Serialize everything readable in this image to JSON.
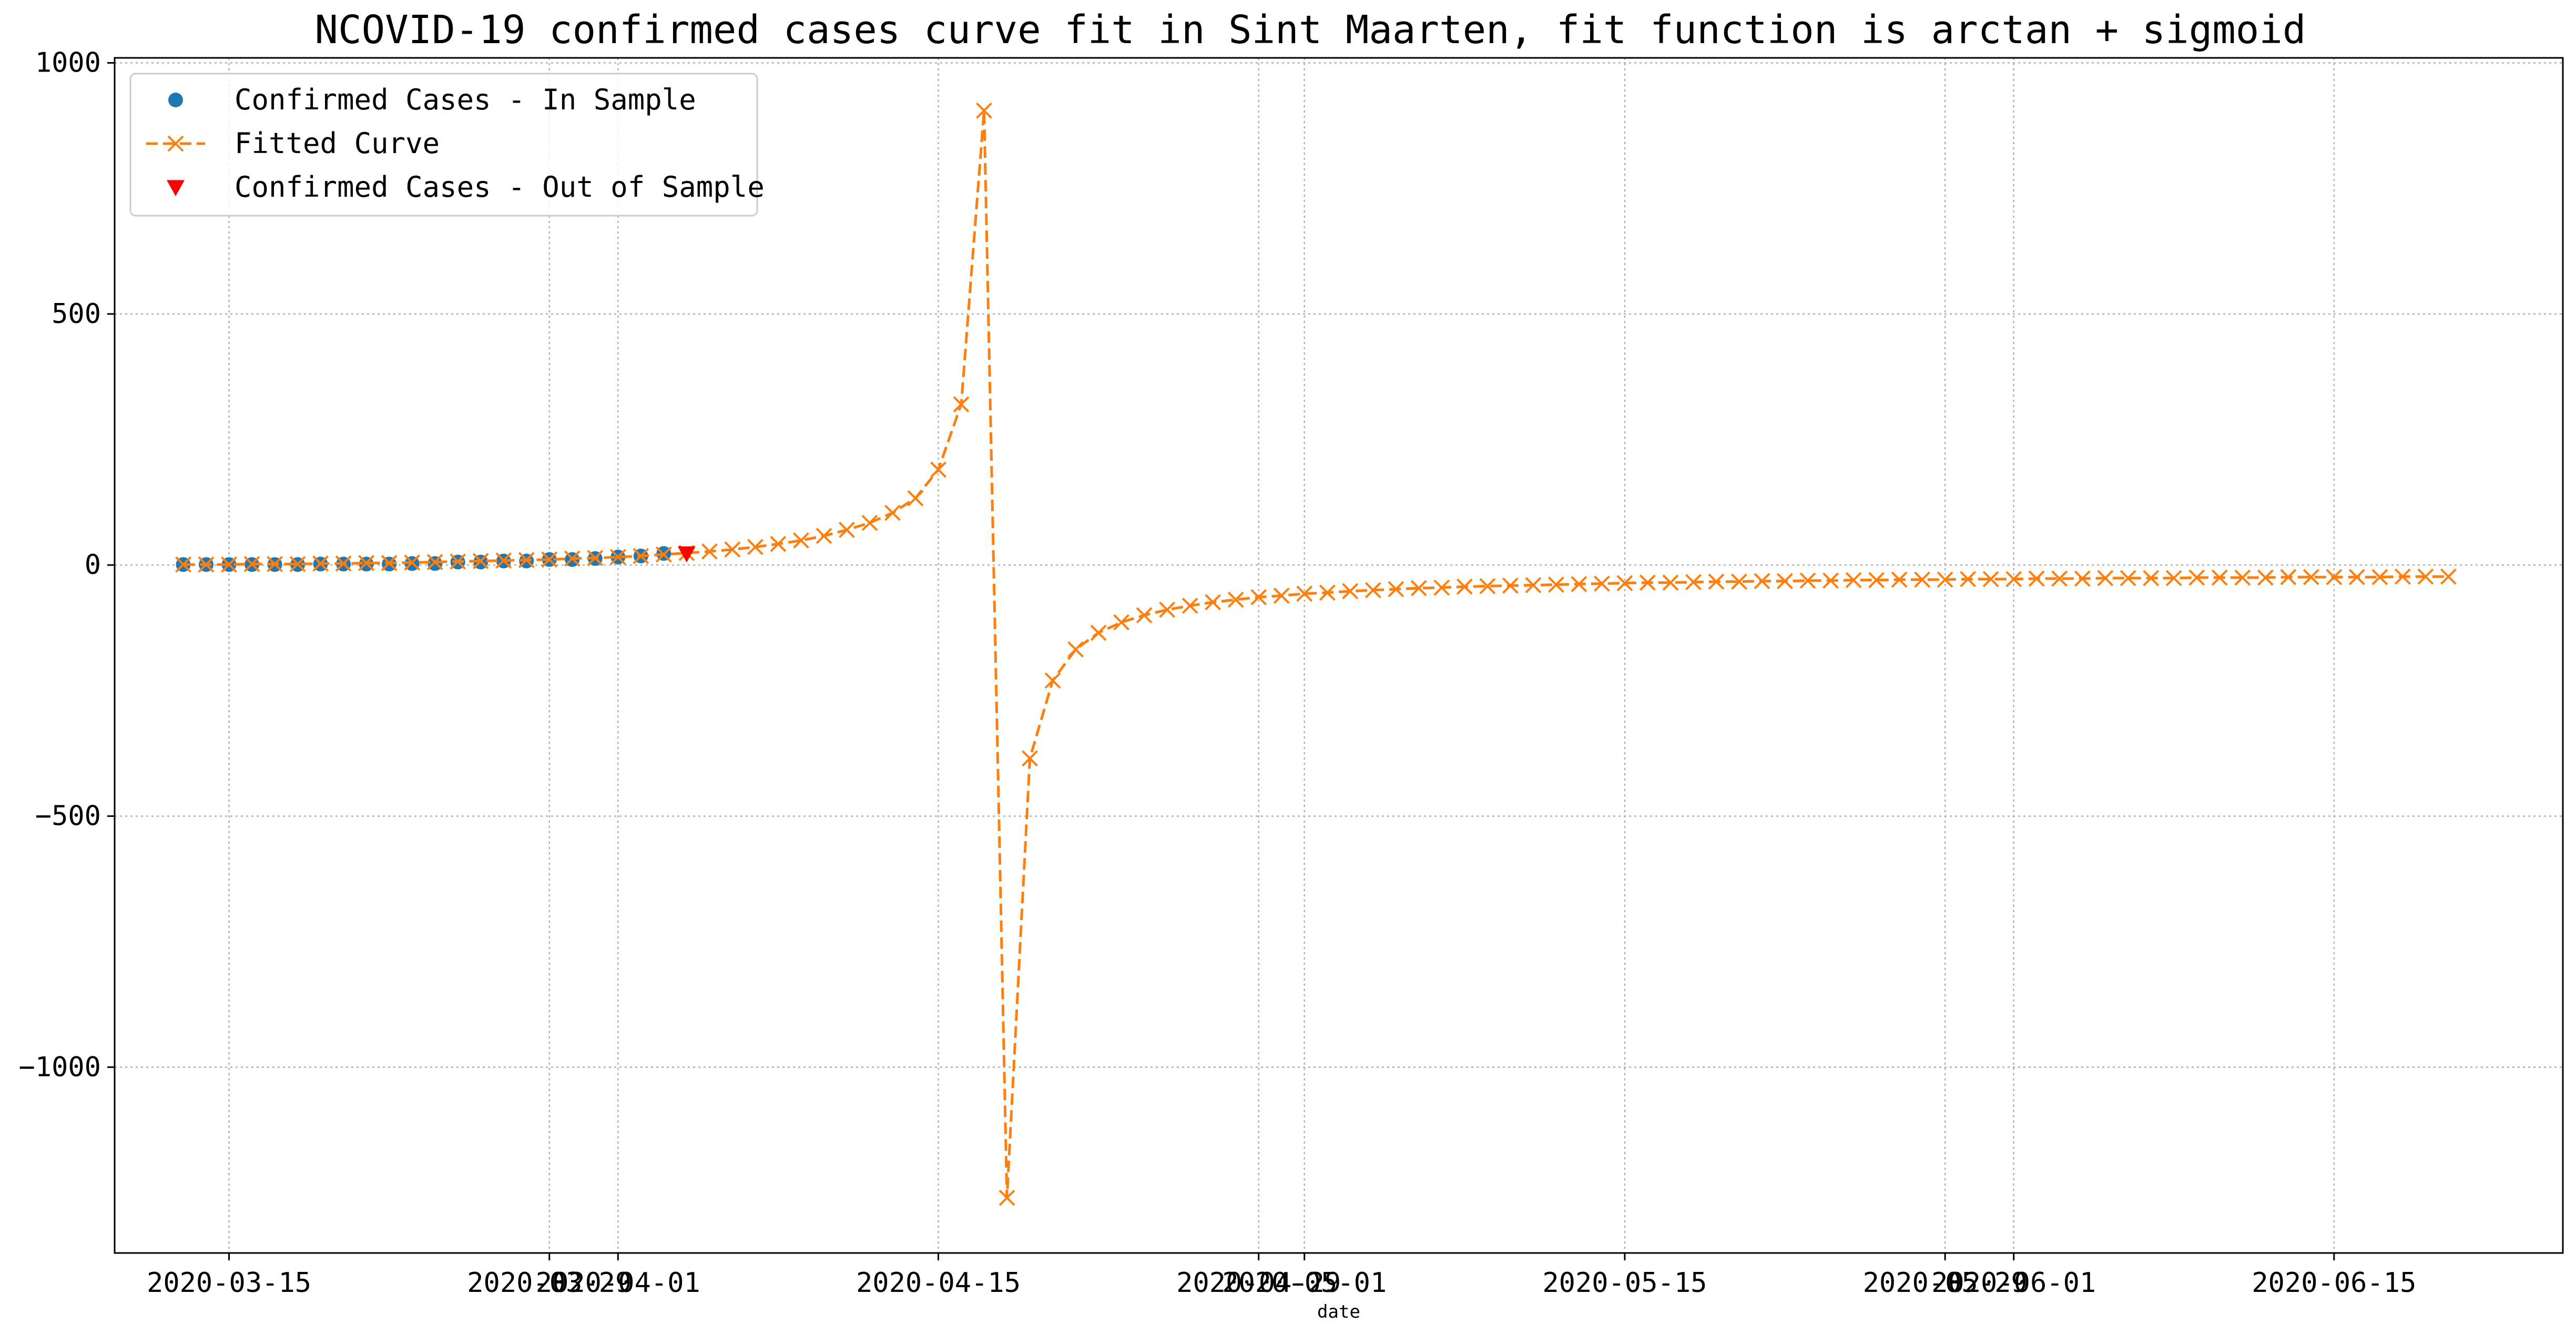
{
  "chart_data": {
    "type": "line",
    "title": "NCOVID-19 confirmed cases curve fit in Sint Maarten, fit function is arctan + sigmoid",
    "xlabel": "date",
    "ylabel": "",
    "x_start_date": "2020-03-13",
    "xlim": [
      "2020-03-10",
      "2020-06-25"
    ],
    "ylim": [
      -1370,
      1010
    ],
    "x_ticks": [
      {
        "date": "2020-03-15",
        "label": "2020-03-15"
      },
      {
        "date": "2020-03-29",
        "label": "2020-03-29"
      },
      {
        "date": "2020-04-01",
        "label": "2020-04-01"
      },
      {
        "date": "2020-04-15",
        "label": "2020-04-15"
      },
      {
        "date": "2020-04-29",
        "label": "2020-04-29"
      },
      {
        "date": "2020-05-01",
        "label": "2020-05-01"
      },
      {
        "date": "2020-05-15",
        "label": "2020-05-15"
      },
      {
        "date": "2020-05-29",
        "label": "2020-05-29"
      },
      {
        "date": "2020-06-01",
        "label": "2020-06-01"
      },
      {
        "date": "2020-06-15",
        "label": "2020-06-15"
      }
    ],
    "y_ticks": [
      1000,
      500,
      0,
      -500,
      -1000
    ],
    "grid": true,
    "legend_position": "top-left",
    "series": [
      {
        "name": "Confirmed Cases - In Sample",
        "marker": "circle",
        "color": "#1f77b4",
        "points": [
          {
            "date": "2020-03-13",
            "value": 1
          },
          {
            "date": "2020-03-14",
            "value": 1
          },
          {
            "date": "2020-03-15",
            "value": 1
          },
          {
            "date": "2020-03-16",
            "value": 1
          },
          {
            "date": "2020-03-17",
            "value": 1
          },
          {
            "date": "2020-03-18",
            "value": 1
          },
          {
            "date": "2020-03-19",
            "value": 2
          },
          {
            "date": "2020-03-20",
            "value": 2
          },
          {
            "date": "2020-03-21",
            "value": 2
          },
          {
            "date": "2020-03-22",
            "value": 2
          },
          {
            "date": "2020-03-23",
            "value": 3
          },
          {
            "date": "2020-03-24",
            "value": 3
          },
          {
            "date": "2020-03-25",
            "value": 6
          },
          {
            "date": "2020-03-26",
            "value": 6
          },
          {
            "date": "2020-03-27",
            "value": 8
          },
          {
            "date": "2020-03-28",
            "value": 8
          },
          {
            "date": "2020-03-29",
            "value": 11
          },
          {
            "date": "2020-03-30",
            "value": 11
          },
          {
            "date": "2020-03-31",
            "value": 13
          },
          {
            "date": "2020-04-01",
            "value": 16
          },
          {
            "date": "2020-04-02",
            "value": 18
          },
          {
            "date": "2020-04-03",
            "value": 23
          }
        ]
      },
      {
        "name": "Fitted Curve",
        "marker": "x",
        "line_style": "dashed",
        "color": "#ff7f0e",
        "points": [
          {
            "date": "2020-03-13",
            "value": 1
          },
          {
            "date": "2020-03-14",
            "value": 1
          },
          {
            "date": "2020-03-15",
            "value": 1
          },
          {
            "date": "2020-03-16",
            "value": 2
          },
          {
            "date": "2020-03-17",
            "value": 2
          },
          {
            "date": "2020-03-18",
            "value": 2
          },
          {
            "date": "2020-03-19",
            "value": 3
          },
          {
            "date": "2020-03-20",
            "value": 3
          },
          {
            "date": "2020-03-21",
            "value": 4
          },
          {
            "date": "2020-03-22",
            "value": 4
          },
          {
            "date": "2020-03-23",
            "value": 5
          },
          {
            "date": "2020-03-24",
            "value": 6
          },
          {
            "date": "2020-03-25",
            "value": 7
          },
          {
            "date": "2020-03-26",
            "value": 8
          },
          {
            "date": "2020-03-27",
            "value": 9
          },
          {
            "date": "2020-03-28",
            "value": 10
          },
          {
            "date": "2020-03-29",
            "value": 11
          },
          {
            "date": "2020-03-30",
            "value": 13
          },
          {
            "date": "2020-03-31",
            "value": 14
          },
          {
            "date": "2020-04-01",
            "value": 16
          },
          {
            "date": "2020-04-02",
            "value": 18
          },
          {
            "date": "2020-04-03",
            "value": 21
          },
          {
            "date": "2020-04-04",
            "value": 24
          },
          {
            "date": "2020-04-05",
            "value": 27
          },
          {
            "date": "2020-04-06",
            "value": 31
          },
          {
            "date": "2020-04-07",
            "value": 36
          },
          {
            "date": "2020-04-08",
            "value": 42
          },
          {
            "date": "2020-04-09",
            "value": 49
          },
          {
            "date": "2020-04-10",
            "value": 58
          },
          {
            "date": "2020-04-11",
            "value": 70
          },
          {
            "date": "2020-04-12",
            "value": 84
          },
          {
            "date": "2020-04-13",
            "value": 104
          },
          {
            "date": "2020-04-14",
            "value": 133
          },
          {
            "date": "2020-04-15",
            "value": 190
          },
          {
            "date": "2020-04-16",
            "value": 320
          },
          {
            "date": "2020-04-17",
            "value": 905
          },
          {
            "date": "2020-04-18",
            "value": -1260
          },
          {
            "date": "2020-04-19",
            "value": -385
          },
          {
            "date": "2020-04-20",
            "value": -230
          },
          {
            "date": "2020-04-21",
            "value": -168
          },
          {
            "date": "2020-04-22",
            "value": -135
          },
          {
            "date": "2020-04-23",
            "value": -114
          },
          {
            "date": "2020-04-24",
            "value": -100
          },
          {
            "date": "2020-04-25",
            "value": -89
          },
          {
            "date": "2020-04-26",
            "value": -81
          },
          {
            "date": "2020-04-27",
            "value": -74
          },
          {
            "date": "2020-04-28",
            "value": -69
          },
          {
            "date": "2020-04-29",
            "value": -64
          },
          {
            "date": "2020-04-30",
            "value": -61
          },
          {
            "date": "2020-05-01",
            "value": -57
          },
          {
            "date": "2020-05-02",
            "value": -55
          },
          {
            "date": "2020-05-03",
            "value": -52
          },
          {
            "date": "2020-05-04",
            "value": -50
          },
          {
            "date": "2020-05-05",
            "value": -48
          },
          {
            "date": "2020-05-06",
            "value": -46
          },
          {
            "date": "2020-05-07",
            "value": -45
          },
          {
            "date": "2020-05-08",
            "value": -43
          },
          {
            "date": "2020-05-09",
            "value": -42
          },
          {
            "date": "2020-05-10",
            "value": -41
          },
          {
            "date": "2020-05-11",
            "value": -40
          },
          {
            "date": "2020-05-12",
            "value": -39
          },
          {
            "date": "2020-05-13",
            "value": -38
          },
          {
            "date": "2020-05-14",
            "value": -37
          },
          {
            "date": "2020-05-15",
            "value": -36
          },
          {
            "date": "2020-05-16",
            "value": -35
          },
          {
            "date": "2020-05-17",
            "value": -35
          },
          {
            "date": "2020-05-18",
            "value": -34
          },
          {
            "date": "2020-05-19",
            "value": -33
          },
          {
            "date": "2020-05-20",
            "value": -33
          },
          {
            "date": "2020-05-21",
            "value": -32
          },
          {
            "date": "2020-05-22",
            "value": -32
          },
          {
            "date": "2020-05-23",
            "value": -31
          },
          {
            "date": "2020-05-24",
            "value": -31
          },
          {
            "date": "2020-05-25",
            "value": -30
          },
          {
            "date": "2020-05-26",
            "value": -30
          },
          {
            "date": "2020-05-27",
            "value": -29
          },
          {
            "date": "2020-05-28",
            "value": -29
          },
          {
            "date": "2020-05-29",
            "value": -29
          },
          {
            "date": "2020-05-30",
            "value": -28
          },
          {
            "date": "2020-05-31",
            "value": -28
          },
          {
            "date": "2020-06-01",
            "value": -28
          },
          {
            "date": "2020-06-02",
            "value": -27
          },
          {
            "date": "2020-06-03",
            "value": -27
          },
          {
            "date": "2020-06-04",
            "value": -27
          },
          {
            "date": "2020-06-05",
            "value": -26
          },
          {
            "date": "2020-06-06",
            "value": -26
          },
          {
            "date": "2020-06-07",
            "value": -26
          },
          {
            "date": "2020-06-08",
            "value": -26
          },
          {
            "date": "2020-06-09",
            "value": -25
          },
          {
            "date": "2020-06-10",
            "value": -25
          },
          {
            "date": "2020-06-11",
            "value": -25
          },
          {
            "date": "2020-06-12",
            "value": -25
          },
          {
            "date": "2020-06-13",
            "value": -24
          },
          {
            "date": "2020-06-14",
            "value": -24
          },
          {
            "date": "2020-06-15",
            "value": -24
          },
          {
            "date": "2020-06-16",
            "value": -24
          },
          {
            "date": "2020-06-17",
            "value": -24
          },
          {
            "date": "2020-06-18",
            "value": -23
          },
          {
            "date": "2020-06-19",
            "value": -23
          },
          {
            "date": "2020-06-20",
            "value": -23
          }
        ]
      },
      {
        "name": "Confirmed Cases - Out of Sample",
        "marker": "triangle-down",
        "color": "#ff0000",
        "points": [
          {
            "date": "2020-04-04",
            "value": 23
          }
        ]
      }
    ]
  }
}
